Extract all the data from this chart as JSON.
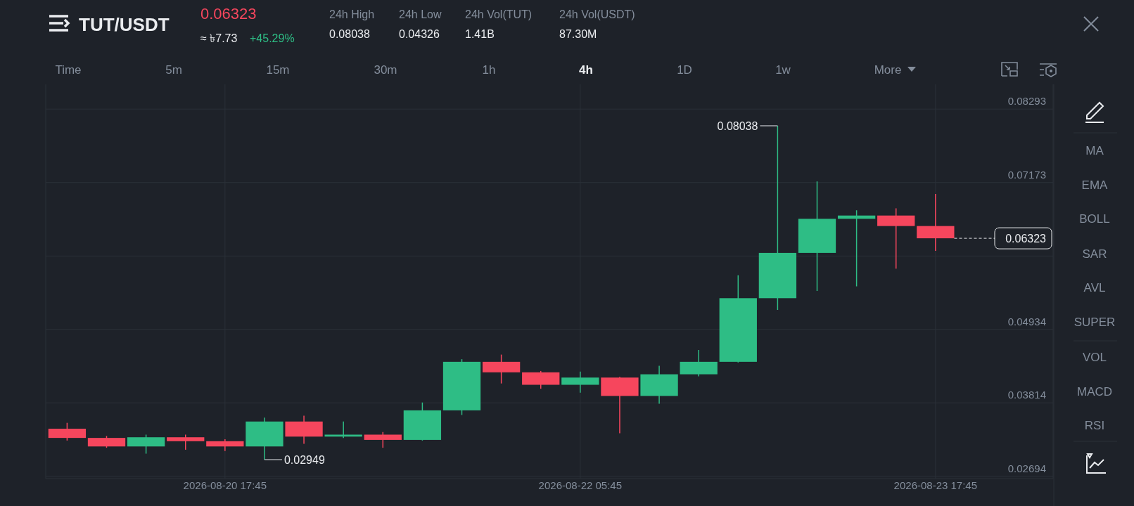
{
  "chart_data": {
    "type": "candlestick",
    "title": "TUT/USDT",
    "x": [
      "2026-08-20T01:45",
      "2026-08-20T05:45",
      "2026-08-20T09:45",
      "2026-08-20T13:45",
      "2026-08-20T17:45",
      "2026-08-20T21:45",
      "2026-08-21T01:45",
      "2026-08-21T05:45",
      "2026-08-21T09:45",
      "2026-08-21T13:45",
      "2026-08-21T17:45",
      "2026-08-21T21:45",
      "2026-08-22T01:45",
      "2026-08-22T05:45",
      "2026-08-22T09:45",
      "2026-08-22T13:45",
      "2026-08-22T17:45",
      "2026-08-22T21:45",
      "2026-08-23T01:45",
      "2026-08-23T05:45",
      "2026-08-23T09:45",
      "2026-08-23T13:45",
      "2026-08-23T17:45"
    ],
    "ohlc": [
      [
        0.0342,
        0.0351,
        0.0324,
        0.0328
      ],
      [
        0.0328,
        0.0331,
        0.0313,
        0.0315
      ],
      [
        0.0315,
        0.0333,
        0.0304,
        0.0329
      ],
      [
        0.0329,
        0.0333,
        0.031,
        0.0323
      ],
      [
        0.0323,
        0.0326,
        0.0308,
        0.0315
      ],
      [
        0.0315,
        0.0359,
        0.02949,
        0.0353
      ],
      [
        0.0353,
        0.0362,
        0.0319,
        0.033
      ],
      [
        0.033,
        0.0353,
        0.0328,
        0.0333
      ],
      [
        0.0333,
        0.0337,
        0.0313,
        0.0325
      ],
      [
        0.0325,
        0.0382,
        0.0324,
        0.037
      ],
      [
        0.037,
        0.0448,
        0.0363,
        0.0444
      ],
      [
        0.0444,
        0.0455,
        0.0411,
        0.0428
      ],
      [
        0.0428,
        0.043,
        0.0403,
        0.0409
      ],
      [
        0.0409,
        0.0429,
        0.0397,
        0.042
      ],
      [
        0.042,
        0.0421,
        0.0335,
        0.0392
      ],
      [
        0.0392,
        0.0438,
        0.038,
        0.0425
      ],
      [
        0.0425,
        0.0462,
        0.0422,
        0.0444
      ],
      [
        0.0444,
        0.0576,
        0.0443,
        0.0541
      ],
      [
        0.0541,
        0.08038,
        0.0523,
        0.061
      ],
      [
        0.061,
        0.0719,
        0.0552,
        0.0662
      ],
      [
        0.0662,
        0.0675,
        0.0559,
        0.0667
      ],
      [
        0.0667,
        0.0678,
        0.0586,
        0.0651
      ],
      [
        0.0651,
        0.07,
        0.0613,
        0.06323
      ]
    ],
    "colors": [
      "#f6465d",
      "#f6465d",
      "#2ebd85",
      "#f6465d",
      "#f6465d",
      "#2ebd85",
      "#f6465d",
      "#2ebd85",
      "#f6465d",
      "#2ebd85",
      "#2ebd85",
      "#f6465d",
      "#f6465d",
      "#2ebd85",
      "#f6465d",
      "#2ebd85",
      "#2ebd85",
      "#2ebd85",
      "#2ebd85",
      "#2ebd85",
      "#2ebd85",
      "#f6465d",
      "#f6465d"
    ],
    "xlim": [
      "2026-08-19T23:35",
      "2026-08-24T05:40"
    ],
    "xticks": [
      {
        "value": "2026-08-20T17:45",
        "label": "2026-08-20 17:45"
      },
      {
        "value": "2026-08-22T05:45",
        "label": "2026-08-22 05:45"
      },
      {
        "value": "2026-08-23T17:45",
        "label": "2026-08-23 17:45"
      }
    ],
    "ylim": [
      0.0266,
      0.0867
    ],
    "yticks": [
      0.02694,
      0.03814,
      0.04934,
      {
        "value": 0.06053,
        "label": null
      },
      0.07173,
      0.08293
    ],
    "grid": true,
    "ref_lines": [
      {
        "axis": "y",
        "value": 0.06323,
        "label": "0.06323",
        "line_style": "dashed"
      }
    ],
    "annotations": [
      "0.06323",
      "≈ ৳7.73",
      "+45.29%",
      "24h High",
      "0.08038",
      "24h Low",
      "0.04326",
      "24h Vol(TUT)",
      "1.41B",
      "24h Vol(USDT)",
      "87.30M",
      "Time",
      "5m",
      "15m",
      "30m",
      "1h",
      "4h",
      "1D",
      "1w",
      "More",
      "MA",
      "EMA",
      "BOLL",
      "SAR",
      "AVL",
      "SUPER",
      "VOL",
      "MACD",
      "RSI",
      {
        "text": "0.08038",
        "x": "2026-08-23T01:45",
        "y": 0.08038
      },
      {
        "text": "0.02949",
        "x": "2026-08-20T21:45",
        "y": 0.02949
      }
    ]
  }
}
